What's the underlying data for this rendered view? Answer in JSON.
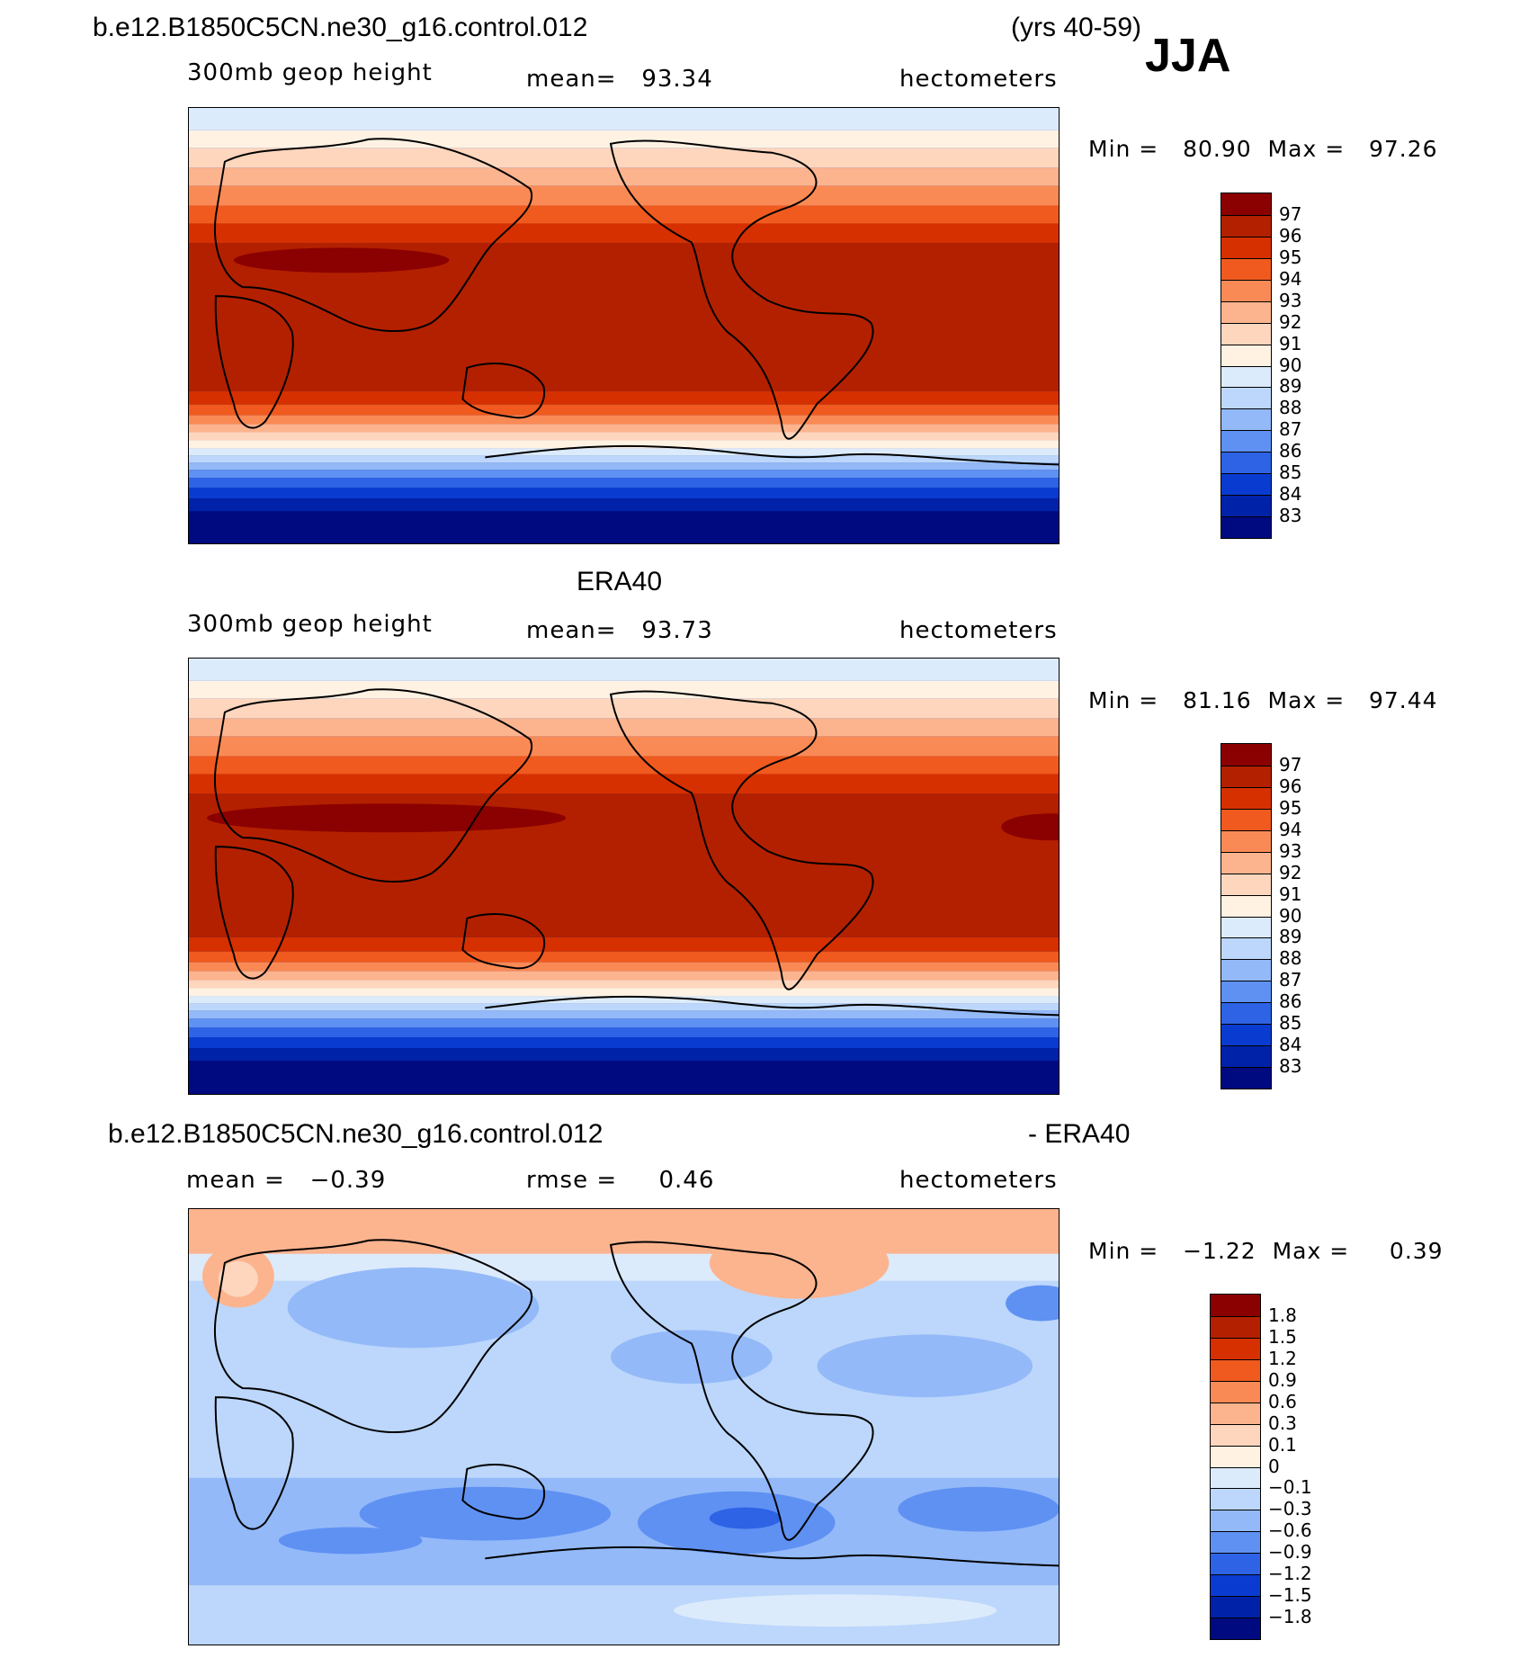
{
  "header": {
    "case_name": "b.e12.B1850C5CN.ne30_g16.control.012",
    "years": "(yrs 40-59)",
    "season": "JJA"
  },
  "panels": [
    {
      "id": "model",
      "title": "",
      "variable": "300mb geop height",
      "stat": "mean=   93.34",
      "units": "hectometers",
      "minmax": "Min =   80.90  Max =   97.26",
      "colorbar": {
        "labels": [
          "97",
          "96",
          "95",
          "94",
          "93",
          "92",
          "91",
          "90",
          "89",
          "88",
          "87",
          "86",
          "85",
          "84",
          "83"
        ],
        "colors": [
          "#8b0000",
          "#b32000",
          "#d63000",
          "#f05a1e",
          "#fa8a55",
          "#fcb48f",
          "#fdd6bd",
          "#fff2e3",
          "#dcebfb",
          "#bcd7fb",
          "#93b9f8",
          "#5f91f3",
          "#2e63e6",
          "#0a3bd0",
          "#0022a8",
          "#000a80"
        ]
      }
    },
    {
      "id": "obs",
      "title": "ERA40",
      "variable": "300mb geop height",
      "stat": "mean=   93.73",
      "units": "hectometers",
      "minmax": "Min =   81.16  Max =   97.44",
      "colorbar": {
        "labels": [
          "97",
          "96",
          "95",
          "94",
          "93",
          "92",
          "91",
          "90",
          "89",
          "88",
          "87",
          "86",
          "85",
          "84",
          "83"
        ],
        "colors": [
          "#8b0000",
          "#b32000",
          "#d63000",
          "#f05a1e",
          "#fa8a55",
          "#fcb48f",
          "#fdd6bd",
          "#fff2e3",
          "#dcebfb",
          "#bcd7fb",
          "#93b9f8",
          "#5f91f3",
          "#2e63e6",
          "#0a3bd0",
          "#0022a8",
          "#000a80"
        ]
      }
    },
    {
      "id": "diff",
      "title": "b.e12.B1850C5CN.ne30_g16.control.012",
      "title_right": "- ERA40",
      "variable": "mean =   −0.39",
      "stat": "rmse =     0.46",
      "units": "hectometers",
      "minmax": "Min =   −1.22  Max =     0.39",
      "colorbar": {
        "labels": [
          "1.8",
          "1.5",
          "1.2",
          "0.9",
          "0.6",
          "0.3",
          "0.1",
          "0",
          "−0.1",
          "−0.3",
          "−0.6",
          "−0.9",
          "−1.2",
          "−1.5",
          "−1.8"
        ],
        "colors": [
          "#8b0000",
          "#b32000",
          "#d63000",
          "#f05a1e",
          "#fa8a55",
          "#fcb48f",
          "#fdd6bd",
          "#fff2e3",
          "#dcebfb",
          "#bcd7fb",
          "#93b9f8",
          "#5f91f3",
          "#2e63e6",
          "#0a3bd0",
          "#0022a8",
          "#000a80"
        ]
      }
    }
  ]
}
